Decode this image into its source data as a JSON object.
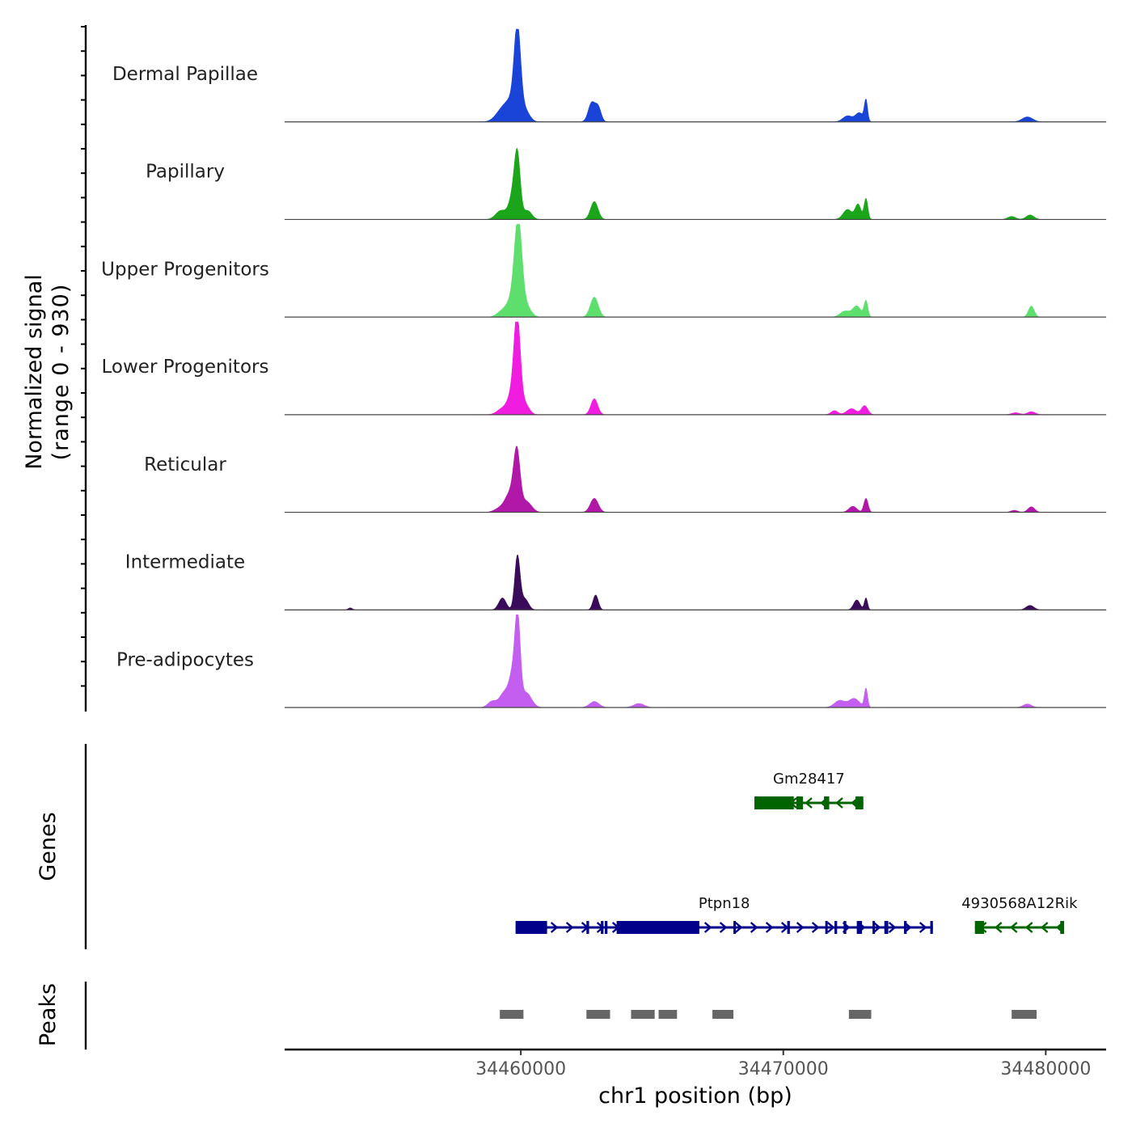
{
  "chart_data": {
    "type": "coverage-track",
    "ylabel_line1": "Normalized signal",
    "ylabel_line2": "(range 0 - 930)",
    "y_range": [
      0,
      930
    ],
    "xlabel": "chr1 position (bp)",
    "xlim": [
      34451000,
      34482300
    ],
    "x_ticks": [
      34460000,
      34470000,
      34480000
    ],
    "x_tick_labels": [
      "34460000",
      "34470000",
      "34480000"
    ],
    "tracks": [
      {
        "name": "Dermal Papillae",
        "color": "#1a44d8",
        "peaks": [
          {
            "pos": 34459300,
            "h": 120,
            "w": 250
          },
          {
            "pos": 34459700,
            "h": 190,
            "w": 230
          },
          {
            "pos": 34459870,
            "h": 820,
            "w": 120
          },
          {
            "pos": 34460150,
            "h": 110,
            "w": 180
          },
          {
            "pos": 34462700,
            "h": 190,
            "w": 130
          },
          {
            "pos": 34462950,
            "h": 140,
            "w": 110
          },
          {
            "pos": 34472450,
            "h": 60,
            "w": 180
          },
          {
            "pos": 34472900,
            "h": 90,
            "w": 150
          },
          {
            "pos": 34473150,
            "h": 210,
            "w": 60
          },
          {
            "pos": 34479300,
            "h": 50,
            "w": 200
          }
        ]
      },
      {
        "name": "Papillary",
        "color": "#1aa51a",
        "peaks": [
          {
            "pos": 34459250,
            "h": 90,
            "w": 200
          },
          {
            "pos": 34459700,
            "h": 230,
            "w": 150
          },
          {
            "pos": 34459870,
            "h": 580,
            "w": 110
          },
          {
            "pos": 34460250,
            "h": 90,
            "w": 160
          },
          {
            "pos": 34462800,
            "h": 180,
            "w": 140
          },
          {
            "pos": 34472450,
            "h": 100,
            "w": 170
          },
          {
            "pos": 34472850,
            "h": 150,
            "w": 110
          },
          {
            "pos": 34473150,
            "h": 210,
            "w": 70
          },
          {
            "pos": 34478700,
            "h": 30,
            "w": 150
          },
          {
            "pos": 34479400,
            "h": 45,
            "w": 150
          }
        ]
      },
      {
        "name": "Upper Progenitors",
        "color": "#5ede6d",
        "peaks": [
          {
            "pos": 34459300,
            "h": 60,
            "w": 200
          },
          {
            "pos": 34459650,
            "h": 150,
            "w": 180
          },
          {
            "pos": 34459900,
            "h": 930,
            "w": 140
          },
          {
            "pos": 34460200,
            "h": 110,
            "w": 180
          },
          {
            "pos": 34462800,
            "h": 200,
            "w": 150
          },
          {
            "pos": 34472350,
            "h": 60,
            "w": 180
          },
          {
            "pos": 34472800,
            "h": 110,
            "w": 160
          },
          {
            "pos": 34473150,
            "h": 160,
            "w": 70
          },
          {
            "pos": 34479450,
            "h": 110,
            "w": 110
          }
        ]
      },
      {
        "name": "Lower Progenitors",
        "color": "#f01ce0",
        "peaks": [
          {
            "pos": 34459300,
            "h": 60,
            "w": 200
          },
          {
            "pos": 34459650,
            "h": 180,
            "w": 160
          },
          {
            "pos": 34459860,
            "h": 930,
            "w": 120
          },
          {
            "pos": 34460150,
            "h": 110,
            "w": 160
          },
          {
            "pos": 34462800,
            "h": 160,
            "w": 130
          },
          {
            "pos": 34471950,
            "h": 40,
            "w": 130
          },
          {
            "pos": 34472600,
            "h": 60,
            "w": 180
          },
          {
            "pos": 34473100,
            "h": 90,
            "w": 120
          },
          {
            "pos": 34478850,
            "h": 20,
            "w": 150
          },
          {
            "pos": 34479450,
            "h": 30,
            "w": 150
          }
        ]
      },
      {
        "name": "Reticular",
        "color": "#b218a8",
        "peaks": [
          {
            "pos": 34459200,
            "h": 40,
            "w": 200
          },
          {
            "pos": 34459600,
            "h": 190,
            "w": 190
          },
          {
            "pos": 34459850,
            "h": 560,
            "w": 120
          },
          {
            "pos": 34460200,
            "h": 110,
            "w": 200
          },
          {
            "pos": 34462800,
            "h": 140,
            "w": 150
          },
          {
            "pos": 34472650,
            "h": 60,
            "w": 150
          },
          {
            "pos": 34473150,
            "h": 140,
            "w": 80
          },
          {
            "pos": 34479450,
            "h": 55,
            "w": 130
          },
          {
            "pos": 34478800,
            "h": 20,
            "w": 130
          }
        ]
      },
      {
        "name": "Intermediate",
        "color": "#3a0b5a",
        "peaks": [
          {
            "pos": 34453500,
            "h": 20,
            "w": 80
          },
          {
            "pos": 34459300,
            "h": 120,
            "w": 140
          },
          {
            "pos": 34459870,
            "h": 540,
            "w": 100
          },
          {
            "pos": 34460150,
            "h": 110,
            "w": 140
          },
          {
            "pos": 34462850,
            "h": 150,
            "w": 100
          },
          {
            "pos": 34472800,
            "h": 100,
            "w": 120
          },
          {
            "pos": 34473150,
            "h": 120,
            "w": 60
          },
          {
            "pos": 34479400,
            "h": 45,
            "w": 150
          }
        ]
      },
      {
        "name": "Pre-adipocytes",
        "color": "#c35ef0",
        "peaks": [
          {
            "pos": 34458900,
            "h": 60,
            "w": 160
          },
          {
            "pos": 34459400,
            "h": 160,
            "w": 200
          },
          {
            "pos": 34459700,
            "h": 290,
            "w": 130
          },
          {
            "pos": 34459880,
            "h": 830,
            "w": 100
          },
          {
            "pos": 34460200,
            "h": 150,
            "w": 200
          },
          {
            "pos": 34462800,
            "h": 60,
            "w": 180
          },
          {
            "pos": 34464500,
            "h": 40,
            "w": 200
          },
          {
            "pos": 34472150,
            "h": 70,
            "w": 200
          },
          {
            "pos": 34472700,
            "h": 90,
            "w": 200
          },
          {
            "pos": 34473150,
            "h": 190,
            "w": 60
          },
          {
            "pos": 34479300,
            "h": 35,
            "w": 160
          }
        ]
      }
    ],
    "genes_label": "Genes",
    "genes": [
      {
        "name": "Gm28417",
        "strand": "-",
        "color": "#006400",
        "start": 34468900,
        "end": 34473050,
        "exons": [
          [
            34468900,
            34470400
          ],
          [
            34470500,
            34470750
          ],
          [
            34471550,
            34471750
          ],
          [
            34472750,
            34473050
          ]
        ]
      },
      {
        "name": "Ptpn18",
        "strand": "+",
        "color": "#00008b",
        "start": 34459800,
        "end": 34475700,
        "exons": [
          [
            34459800,
            34461000
          ],
          [
            34462500,
            34462600
          ],
          [
            34463050,
            34463150
          ],
          [
            34463200,
            34463300
          ],
          [
            34463650,
            34466800
          ],
          [
            34468100,
            34468150
          ],
          [
            34470150,
            34470250
          ],
          [
            34471600,
            34471650
          ],
          [
            34471950,
            34472050
          ],
          [
            34472300,
            34472400
          ],
          [
            34472800,
            34473000
          ],
          [
            34473400,
            34473450
          ],
          [
            34473850,
            34474000
          ],
          [
            34474600,
            34474700
          ],
          [
            34475600,
            34475700
          ]
        ]
      },
      {
        "name": "4930568A12Rik",
        "strand": "-",
        "color": "#006400",
        "start": 34477300,
        "end": 34480700,
        "exons": [
          [
            34477300,
            34477650
          ],
          [
            34480550,
            34480700
          ]
        ]
      }
    ],
    "peaks_label": "Peaks",
    "peak_color": "#666666",
    "peak_regions": [
      [
        34459200,
        34460100
      ],
      [
        34462500,
        34463400
      ],
      [
        34464200,
        34465100
      ],
      [
        34465250,
        34465950
      ],
      [
        34467300,
        34468100
      ],
      [
        34472500,
        34473350
      ],
      [
        34478700,
        34479650
      ]
    ]
  }
}
